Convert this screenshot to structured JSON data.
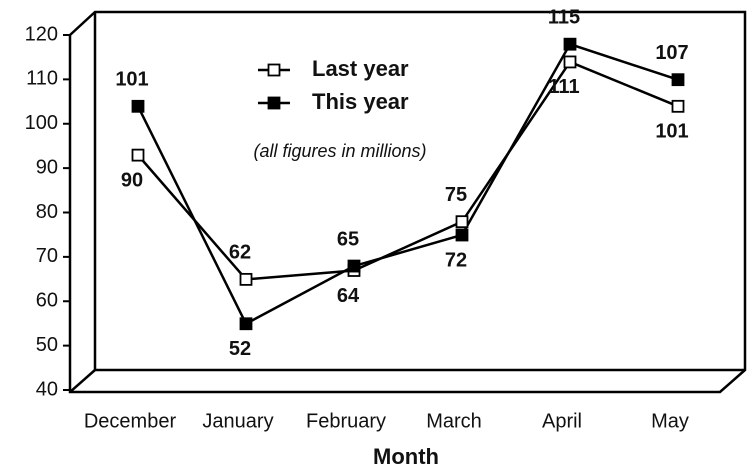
{
  "chart_data": {
    "type": "line",
    "annotation": "(all figures in millions)",
    "x_label": "Month",
    "categories": [
      "December",
      "January",
      "February",
      "March",
      "April",
      "May"
    ],
    "series": [
      {
        "name": "Last year",
        "color": "#000000",
        "marker_fill": "#ffffff",
        "values": [
          90,
          62,
          64,
          75,
          111,
          101
        ]
      },
      {
        "name": "This year",
        "color": "#000000",
        "marker_fill": "#000000",
        "values": [
          101,
          52,
          65,
          72,
          115,
          107
        ]
      }
    ],
    "ylim": [
      40,
      120
    ],
    "yticks": [
      40,
      50,
      60,
      70,
      80,
      90,
      100,
      110,
      120
    ],
    "grid": false,
    "legend": "top"
  }
}
